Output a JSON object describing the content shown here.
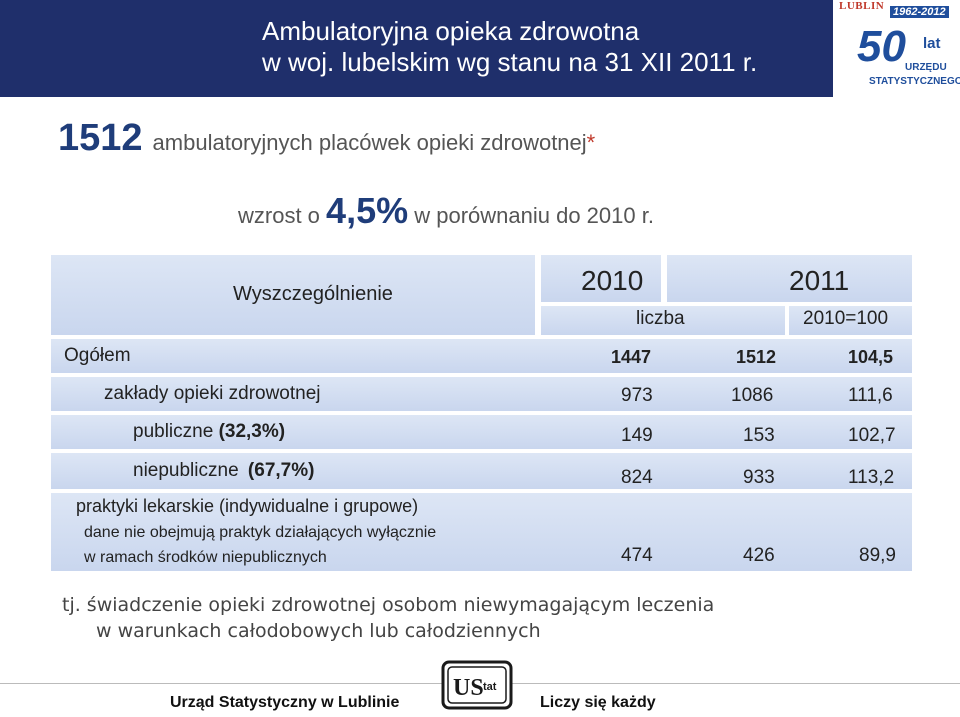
{
  "header": {
    "title_line1": "Ambulatoryjna opieka zdrowotna",
    "title_line2": "w woj. lubelskim wg stanu na 31 XII 2011 r.",
    "logo": {
      "city": "LUBLIN",
      "years": "1962-2012",
      "fifty": "50",
      "lat": "lat",
      "urzedu": "URZĘDU",
      "statystycznego": "STATYSTYCZNEGO"
    }
  },
  "headline": {
    "number": "1512",
    "text": "ambulatoryjnych placówek opieki zdrowotnej",
    "asterisk": "*"
  },
  "growth": {
    "prefix": "wzrost o",
    "value": "4,5%",
    "suffix": "w porównaniu do 2010 r."
  },
  "table": {
    "header_label": "Wyszczególnienie",
    "year_2010": "2010",
    "year_2011": "2011",
    "sub_liczba": "liczba",
    "sub_index": "2010=100",
    "rows": [
      {
        "label": "Ogółem",
        "v2010": "1447",
        "v2011": "1512",
        "index": "104,5"
      },
      {
        "label": "zakłady opieki zdrowotnej",
        "v2010": "973",
        "v2011": "1086",
        "index": "111,6"
      },
      {
        "label": "publiczne",
        "share": "(32,3%)",
        "v2010": "149",
        "v2011": "153",
        "index": "102,7"
      },
      {
        "label": "niepubliczne",
        "share": "(67,7%)",
        "v2010": "824",
        "v2011": "933",
        "index": "113,2"
      },
      {
        "label": "praktyki lekarskie (indywidualne i grupowe)",
        "note_line1": "dane nie obejmują praktyk działających wyłącznie",
        "note_line2": "w ramach środków niepublicznych",
        "v2010": "474",
        "v2011": "426",
        "index": "89,9"
      }
    ]
  },
  "footnote": {
    "line1": "tj. świadczenie opieki zdrowotnej osobom niewymagającym leczenia",
    "line2": "w warunkach całodobowych lub całodziennych"
  },
  "footer": {
    "left": "Urząd Statystyczny w Lublinie",
    "right": "Liczy się każdy",
    "logo_text": "US tat"
  },
  "colors": {
    "header_bg": "#1f2f6b",
    "accent_blue": "#1f3d7a",
    "asterisk_red": "#c0392b",
    "cell_bg": "#d3ddf1"
  }
}
